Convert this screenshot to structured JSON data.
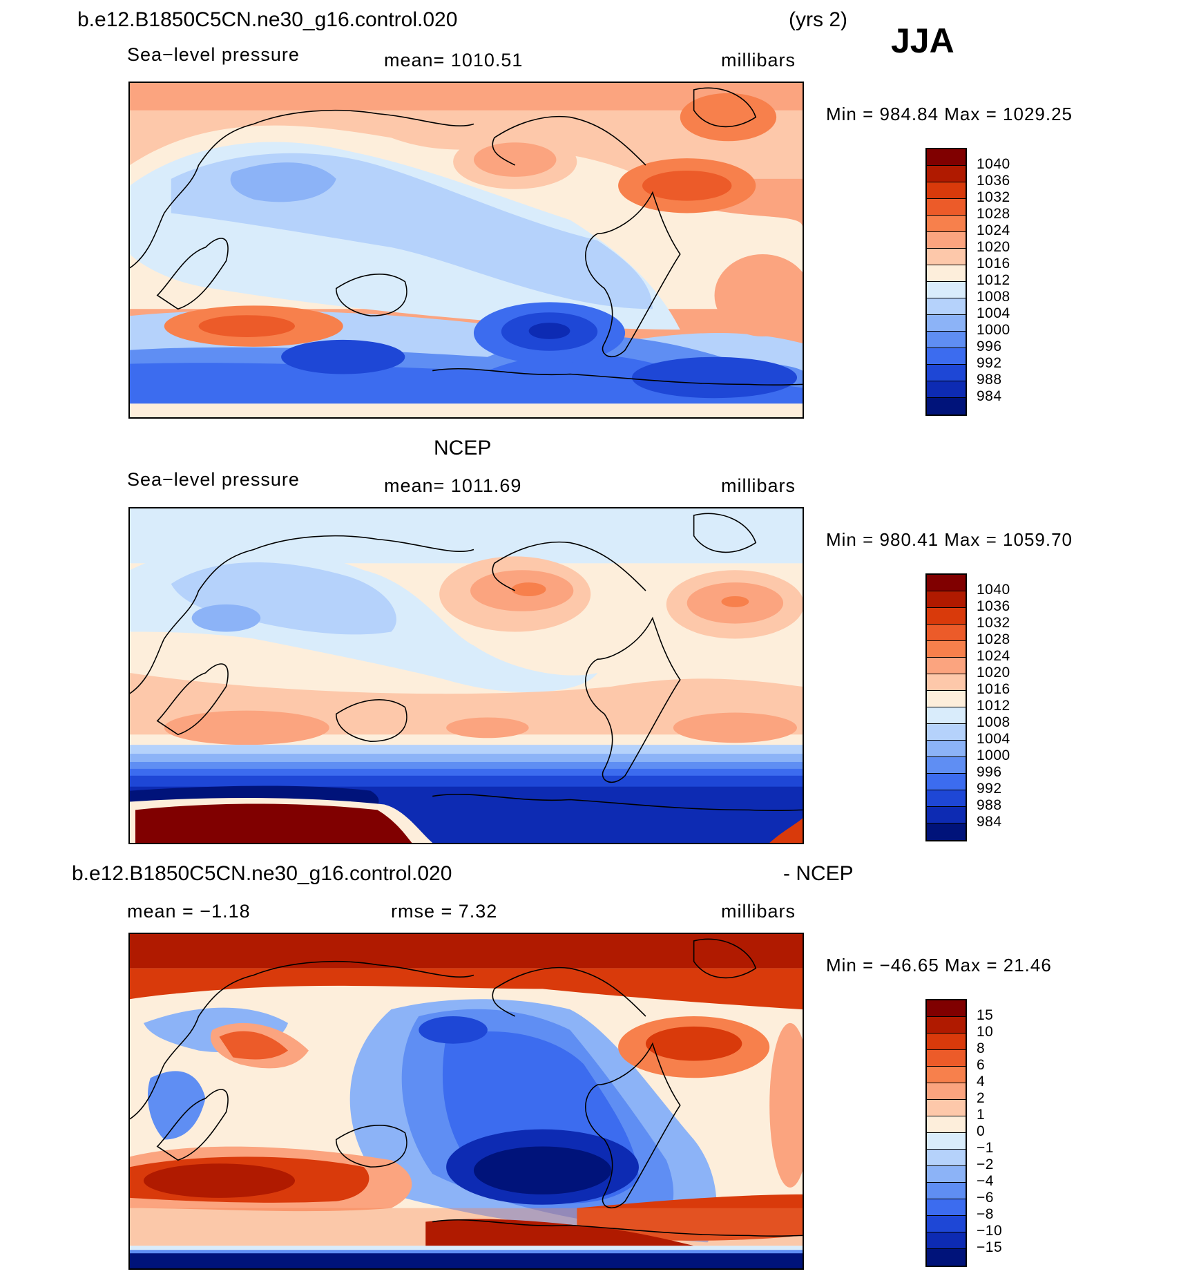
{
  "header": {
    "case_name": "b.e12.B1850C5CN.ne30_g16.control.020",
    "years": "(yrs 2)",
    "season": "JJA"
  },
  "panels": [
    {
      "title": "",
      "variable": "Sea−level pressure",
      "stat": "mean=  1010.51",
      "units": "millibars",
      "minmax": "Min  =  984.84  Max  =  1029.25",
      "colorbar": {
        "labels": [
          "1040",
          "1036",
          "1032",
          "1028",
          "1024",
          "1020",
          "1016",
          "1012",
          "1008",
          "1004",
          "1000",
          "996",
          "992",
          "988",
          "984"
        ]
      }
    },
    {
      "title": "NCEP",
      "variable": "Sea−level pressure",
      "stat": "mean=  1011.69",
      "units": "millibars",
      "minmax": "Min  =  980.41  Max  =  1059.70",
      "colorbar": {
        "labels": [
          "1040",
          "1036",
          "1032",
          "1028",
          "1024",
          "1020",
          "1016",
          "1012",
          "1008",
          "1004",
          "1000",
          "996",
          "992",
          "988",
          "984"
        ]
      }
    },
    {
      "title": "b.e12.B1850C5CN.ne30_g16.control.020",
      "title_suffix": "- NCEP",
      "variable": "mean  =    −1.18",
      "stat": "rmse  =      7.32",
      "units": "millibars",
      "minmax": "Min  =  −46.65  Max  =     21.46",
      "colorbar": {
        "labels": [
          "15",
          "10",
          "8",
          "6",
          "4",
          "2",
          "1",
          "0",
          "−1",
          "−2",
          "−4",
          "−6",
          "−8",
          "−10",
          "−15"
        ]
      }
    }
  ],
  "palette": [
    "#800000",
    "#b01a00",
    "#d93a0b",
    "#ec5b29",
    "#f7804c",
    "#fba47f",
    "#fdc8aa",
    "#fdeedb",
    "#d9ecfb",
    "#b5d2fb",
    "#8cb3f7",
    "#5f8ef3",
    "#3c6cef",
    "#1e47d6",
    "#0d2bb3",
    "#00137a"
  ],
  "chart_data": [
    {
      "type": "heatmap",
      "title": "b.e12.B1850C5CN.ne30_g16.control.020 Sea-level pressure (JJA)",
      "units": "millibars",
      "mean": 1010.51,
      "min": 984.84,
      "max": 1029.25,
      "contour_levels": [
        984,
        988,
        992,
        996,
        1000,
        1004,
        1008,
        1012,
        1016,
        1020,
        1024,
        1028,
        1032,
        1036,
        1040
      ]
    },
    {
      "type": "heatmap",
      "title": "NCEP Sea-level pressure (JJA)",
      "units": "millibars",
      "mean": 1011.69,
      "min": 980.41,
      "max": 1059.7,
      "contour_levels": [
        984,
        988,
        992,
        996,
        1000,
        1004,
        1008,
        1012,
        1016,
        1020,
        1024,
        1028,
        1032,
        1036,
        1040
      ]
    },
    {
      "type": "heatmap",
      "title": "b.e12.B1850C5CN.ne30_g16.control.020 - NCEP",
      "units": "millibars",
      "mean": -1.18,
      "rmse": 7.32,
      "min": -46.65,
      "max": 21.46,
      "contour_levels": [
        -15,
        -10,
        -8,
        -6,
        -4,
        -2,
        -1,
        0,
        1,
        2,
        4,
        6,
        8,
        10,
        15
      ]
    }
  ]
}
